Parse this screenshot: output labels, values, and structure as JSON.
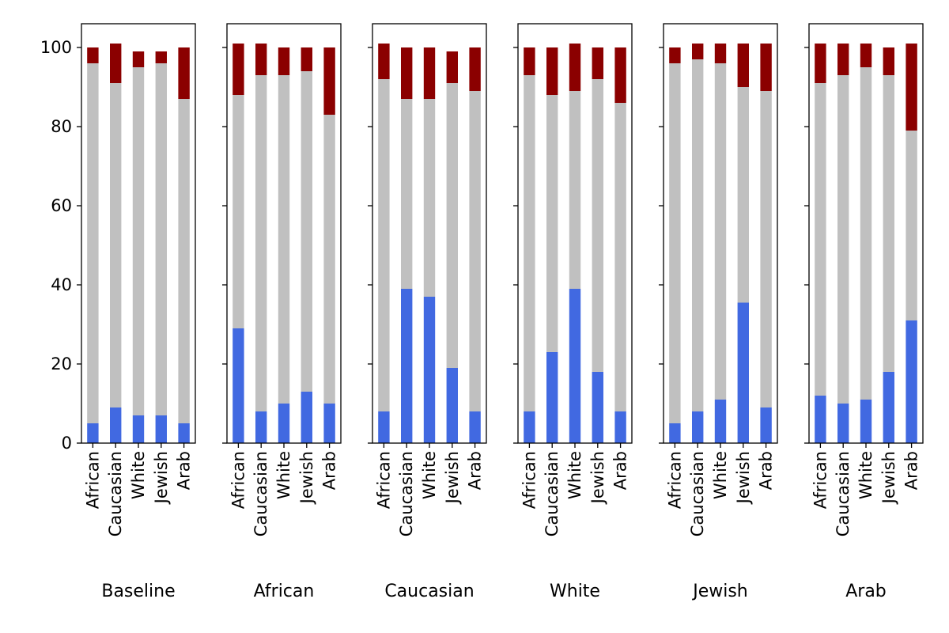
{
  "chart_data": {
    "type": "bar",
    "stacked": true,
    "categories": [
      "African",
      "Caucasian",
      "White",
      "Jewish",
      "Arab"
    ],
    "series_colors": [
      "#4169e1",
      "#c0c0c0",
      "#8b0000"
    ],
    "yticks": [
      "0",
      "20",
      "40",
      "60",
      "80",
      "100"
    ],
    "ylim": [
      0,
      106
    ],
    "grid": false,
    "legend": "none",
    "panels": [
      {
        "xlabel": "Baseline",
        "stacks": [
          {
            "values": [
              5,
              91,
              4
            ]
          },
          {
            "values": [
              9,
              82,
              10
            ]
          },
          {
            "values": [
              7,
              88,
              4
            ]
          },
          {
            "values": [
              7,
              89,
              3
            ]
          },
          {
            "values": [
              5,
              82,
              13
            ]
          }
        ]
      },
      {
        "xlabel": "African",
        "stacks": [
          {
            "values": [
              29,
              59,
              13
            ]
          },
          {
            "values": [
              8,
              85,
              8
            ]
          },
          {
            "values": [
              10,
              83,
              7
            ]
          },
          {
            "values": [
              13,
              81,
              6
            ]
          },
          {
            "values": [
              10,
              73,
              17
            ]
          }
        ]
      },
      {
        "xlabel": "Caucasian",
        "stacks": [
          {
            "values": [
              8,
              84,
              9
            ]
          },
          {
            "values": [
              39,
              48,
              13
            ]
          },
          {
            "values": [
              37,
              50,
              13
            ]
          },
          {
            "values": [
              19,
              72,
              8
            ]
          },
          {
            "values": [
              8,
              81,
              11
            ]
          }
        ]
      },
      {
        "xlabel": "White",
        "stacks": [
          {
            "values": [
              8,
              85,
              7
            ]
          },
          {
            "values": [
              23,
              65,
              12
            ]
          },
          {
            "values": [
              39,
              50,
              12
            ]
          },
          {
            "values": [
              18,
              74,
              8
            ]
          },
          {
            "values": [
              8,
              78,
              14
            ]
          }
        ]
      },
      {
        "xlabel": "Jewish",
        "stacks": [
          {
            "values": [
              5,
              91,
              4
            ]
          },
          {
            "values": [
              8,
              89,
              4
            ]
          },
          {
            "values": [
              11,
              85,
              5
            ]
          },
          {
            "values": [
              35.5,
              54.5,
              11
            ]
          },
          {
            "values": [
              9,
              80,
              12
            ]
          }
        ]
      },
      {
        "xlabel": "Arab",
        "stacks": [
          {
            "values": [
              12,
              79,
              10
            ]
          },
          {
            "values": [
              10,
              83,
              8
            ]
          },
          {
            "values": [
              11,
              84,
              6
            ]
          },
          {
            "values": [
              18,
              75,
              7
            ]
          },
          {
            "values": [
              31,
              48,
              22
            ]
          }
        ]
      }
    ]
  }
}
